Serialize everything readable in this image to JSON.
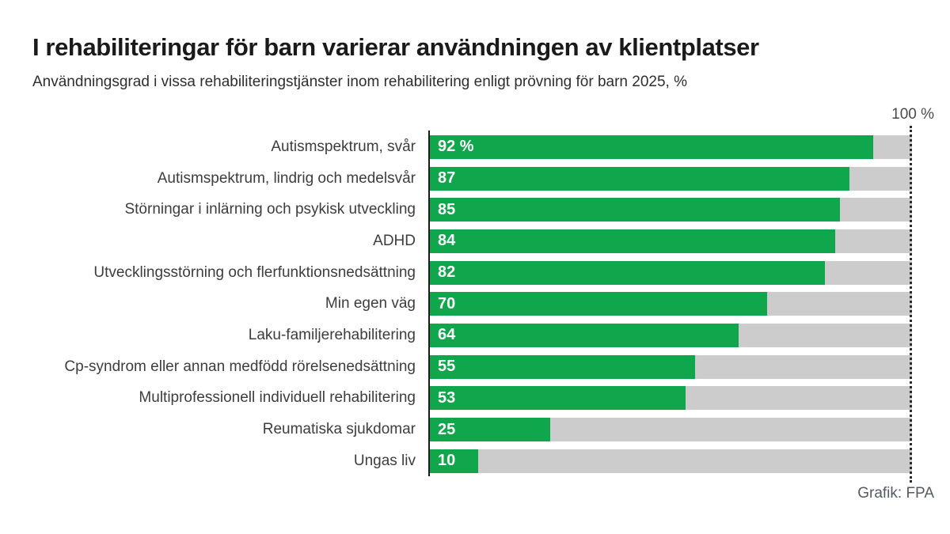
{
  "header": {
    "title": "I rehabiliteringar för barn varierar användningen av klientplatser",
    "subtitle": "Användningsgrad i vissa rehabiliteringstjänster inom rehabilitering enligt prövning för barn 2025, %"
  },
  "axis_max_label": "100 %",
  "credit": "Grafik: FPA",
  "colors": {
    "bar": "#10a64b",
    "track": "#cccccc",
    "axis": "#1a1a1a",
    "title_text": "#1a1a1a",
    "label_text": "#3d3d3d",
    "value_text": "#ffffff"
  },
  "chart_data": {
    "type": "bar",
    "orientation": "horizontal",
    "title": "I rehabiliteringar för barn varierar användningen av klientplatser",
    "subtitle": "Användningsgrad i vissa rehabiliteringstjänster inom rehabilitering enligt prövning för barn 2025, %",
    "categories": [
      "Autismspektrum, svår",
      "Autismspektrum, lindrig och medelsvår",
      "Störningar i inlärning och psykisk utveckling",
      "ADHD",
      "Utvecklingsstörning och flerfunktionsnedsättning",
      "Min egen väg",
      "Laku-familjerehabilitering",
      "Cp-syndrom eller annan medfödd rörelsenedsättning",
      "Multiprofessionell individuell rehabilitering",
      "Reumatiska sjukdomar",
      "Ungas liv"
    ],
    "values": [
      92,
      87,
      85,
      84,
      82,
      70,
      64,
      55,
      53,
      25,
      10
    ],
    "value_labels": [
      "92 %",
      "87",
      "85",
      "84",
      "82",
      "70",
      "64",
      "55",
      "53",
      "25",
      "10"
    ],
    "xlabel": "",
    "ylabel": "",
    "xlim": [
      0,
      100
    ],
    "grid": false,
    "legend": "none",
    "reference_line": {
      "x": 100,
      "style": "dotted",
      "label": "100 %"
    }
  }
}
